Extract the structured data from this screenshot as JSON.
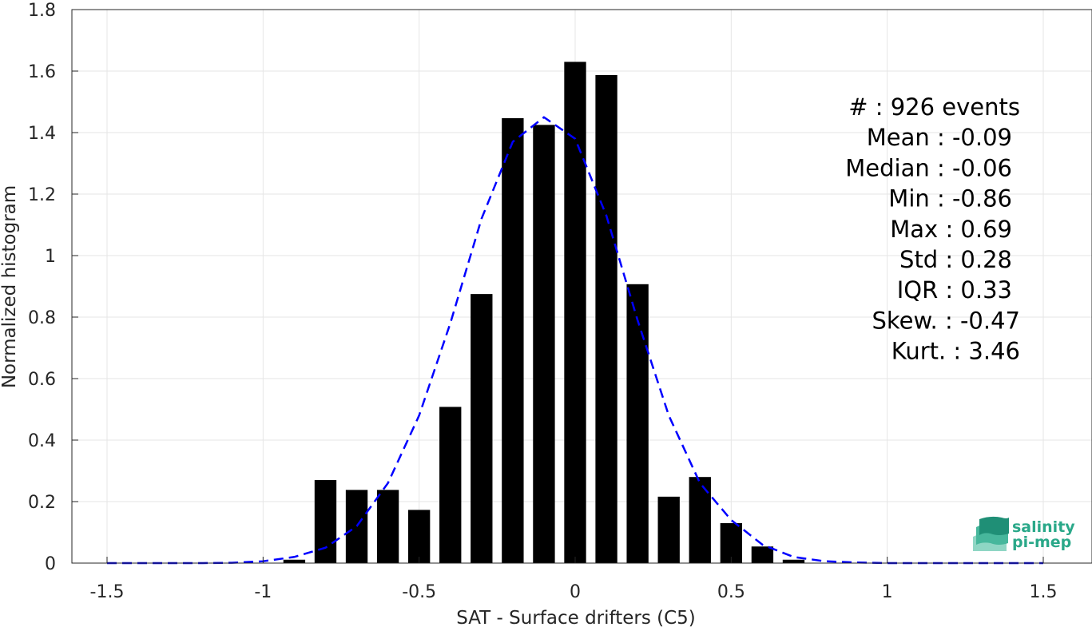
{
  "chart_data": {
    "type": "bar",
    "xlabel": "SAT - Surface drifters (C5)",
    "ylabel": "Normalized histogram",
    "xlim": [
      -1.5,
      1.5
    ],
    "ylim": [
      0,
      1.8
    ],
    "xticks": [
      "-1.5",
      "-1",
      "-0.5",
      "0",
      "0.5",
      "1",
      "1.5"
    ],
    "xtick_values": [
      -1.5,
      -1,
      -0.5,
      0,
      0.5,
      1,
      1.5
    ],
    "yticks": [
      "0",
      "0.2",
      "0.4",
      "0.6",
      "0.8",
      "1",
      "1.2",
      "1.4",
      "1.6",
      "1.8"
    ],
    "ytick_values": [
      0,
      0.2,
      0.4,
      0.6,
      0.8,
      1.0,
      1.2,
      1.4,
      1.6,
      1.8
    ],
    "grid": true,
    "bar_color": "#000000",
    "bar_width": 0.07,
    "bars": {
      "x": [
        -0.9,
        -0.8,
        -0.7,
        -0.6,
        -0.5,
        -0.4,
        -0.3,
        -0.2,
        -0.1,
        0.0,
        0.1,
        0.2,
        0.3,
        0.4,
        0.5,
        0.6,
        0.7
      ],
      "values": [
        0.011,
        0.27,
        0.238,
        0.238,
        0.173,
        0.508,
        0.875,
        1.447,
        1.425,
        1.63,
        1.587,
        0.907,
        0.216,
        0.28,
        0.13,
        0.054,
        0.011
      ]
    },
    "fit_curve": {
      "style": "dashed",
      "color": "#0000ff",
      "x": [
        -1.5,
        -1.4,
        -1.3,
        -1.2,
        -1.1,
        -1.0,
        -0.9,
        -0.8,
        -0.7,
        -0.6,
        -0.5,
        -0.4,
        -0.3,
        -0.2,
        -0.1,
        0.0,
        0.1,
        0.2,
        0.3,
        0.4,
        0.5,
        0.6,
        0.7,
        0.8,
        0.9,
        1.0,
        1.1,
        1.2,
        1.3,
        1.4,
        1.5
      ],
      "y": [
        0.0,
        0.0,
        0.0,
        0.0,
        0.001,
        0.006,
        0.02,
        0.05,
        0.12,
        0.26,
        0.48,
        0.78,
        1.12,
        1.37,
        1.45,
        1.38,
        1.13,
        0.79,
        0.48,
        0.26,
        0.14,
        0.06,
        0.02,
        0.006,
        0.002,
        0.0,
        0.0,
        0.0,
        0.0,
        0.0,
        0.0
      ]
    },
    "stats": [
      {
        "label": "#  : 926 events"
      },
      {
        "label": "Mean : -0.09"
      },
      {
        "label": "Median : -0.06"
      },
      {
        "label": "Min : -0.86"
      },
      {
        "label": "Max : 0.69"
      },
      {
        "label": "Std : 0.28"
      },
      {
        "label": "IQR : 0.33"
      },
      {
        "label": "Skew. : -0.47"
      },
      {
        "label": "Kurt. : 3.46"
      }
    ]
  },
  "logo": {
    "line1": "salinity",
    "line2": "pi-mep",
    "color": "#2aa889"
  }
}
